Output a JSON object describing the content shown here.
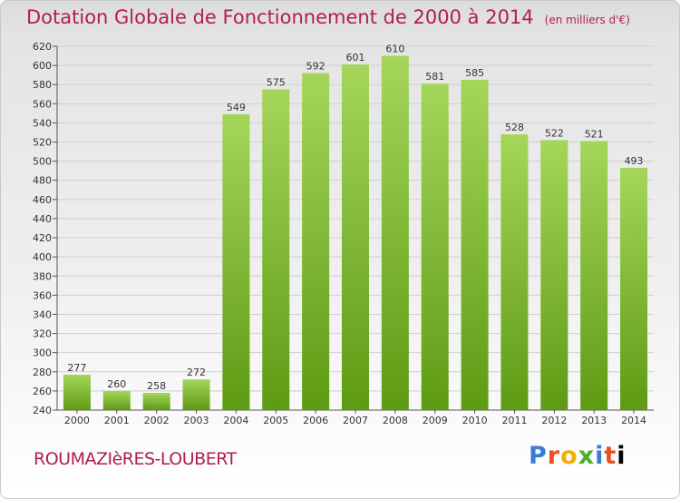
{
  "title": "Dotation Globale de Fonctionnement de 2000 à 2014",
  "unit": "(en milliers d'€)",
  "commune": "ROUMAZIèRES-LOUBERT",
  "logo": [
    "P",
    "r",
    "o",
    "x",
    "i",
    "t",
    "i"
  ],
  "colors": {
    "bar_top": "#a4d65a",
    "bar_bottom": "#5e9a14",
    "grid": "#cfcfcf",
    "title": "#b0204a"
  },
  "chart_data": {
    "type": "bar",
    "categories": [
      "2000",
      "2001",
      "2002",
      "2003",
      "2004",
      "2005",
      "2006",
      "2007",
      "2008",
      "2009",
      "2010",
      "2011",
      "2012",
      "2013",
      "2014"
    ],
    "values": [
      277,
      260,
      258,
      272,
      549,
      575,
      592,
      601,
      610,
      581,
      585,
      528,
      522,
      521,
      493
    ],
    "ylim": [
      240,
      620
    ],
    "yticks": [
      240,
      260,
      280,
      300,
      320,
      340,
      360,
      380,
      400,
      420,
      440,
      460,
      480,
      500,
      520,
      540,
      560,
      580,
      600,
      620
    ],
    "grid": true,
    "xlabel": "",
    "ylabel": ""
  }
}
